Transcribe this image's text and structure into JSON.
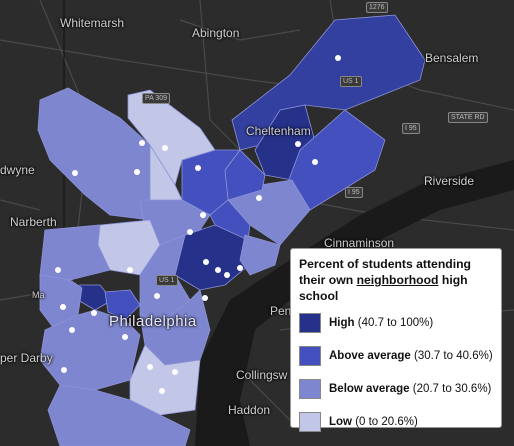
{
  "map": {
    "places": [
      {
        "id": "whitemarsh",
        "name": "Whitemarsh"
      },
      {
        "id": "abington",
        "name": "Abington"
      },
      {
        "id": "bensalem",
        "name": "Bensalem"
      },
      {
        "id": "cheltenham",
        "name": "Cheltenham"
      },
      {
        "id": "wynne",
        "name": "dwyne"
      },
      {
        "id": "narberth",
        "name": "Narberth"
      },
      {
        "id": "riverside",
        "name": "Riverside"
      },
      {
        "id": "cinnaminson",
        "name": "Cinnaminson"
      },
      {
        "id": "philadelphia",
        "name": "Philadelphia"
      },
      {
        "id": "pennsauken",
        "name": "Penna"
      },
      {
        "id": "darby",
        "name": "per Darby"
      },
      {
        "id": "collingswood",
        "name": "Collingsw"
      },
      {
        "id": "haddon",
        "name": "Haddon"
      },
      {
        "id": "merion",
        "name": "Ma"
      }
    ],
    "shields": [
      {
        "id": "pa309",
        "label": "PA 309"
      },
      {
        "id": "us1a",
        "label": "US 1"
      },
      {
        "id": "us1b",
        "label": "US 1"
      },
      {
        "id": "i95",
        "label": "I 95"
      },
      {
        "id": "i95b",
        "label": "I 95"
      },
      {
        "id": "state-rd",
        "label": "STATE RD"
      },
      {
        "id": "i276",
        "label": "1276"
      }
    ],
    "colors": {
      "high": "#26318a",
      "above": "#4450bd",
      "below": "#7d86cf",
      "low": "#c2c6e7",
      "background": "#2c2c2c",
      "river": "#1a1a1a"
    }
  },
  "legend": {
    "title_before": "Percent of students attending their own ",
    "title_underlined": "neighborhood",
    "title_after": " high school",
    "items": [
      {
        "key": "high",
        "label": "High",
        "range": " (40.7 to 100%)",
        "color": "#26318a"
      },
      {
        "key": "above",
        "label": "Above average",
        "range": " (30.7 to 40.6%)",
        "color": "#4450bd"
      },
      {
        "key": "below",
        "label": "Below average",
        "range": " (20.7 to 30.6%)",
        "color": "#7d86cf"
      },
      {
        "key": "low",
        "label": "Low",
        "range": " (0 to 20.6%)",
        "color": "#c2c6e7"
      }
    ]
  }
}
